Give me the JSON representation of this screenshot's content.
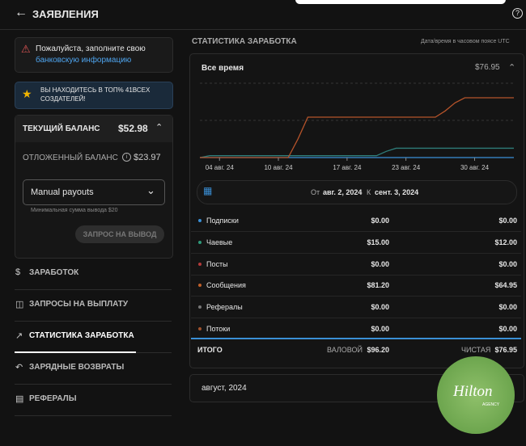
{
  "header": {
    "title": "ЗАЯВЛЕНИЯ"
  },
  "sidebar": {
    "alert": {
      "text": "Пожалуйста, заполните свою",
      "link": "банковскую информацию"
    },
    "rank": "ВЫ НАХОДИТЕСЬ В ТОП% 41ВСЕХ СОЗДАТЕЛЕЙ!",
    "balance": {
      "label": "ТЕКУЩИЙ БАЛАНС",
      "value": "$52.98"
    },
    "pending": {
      "label": "ОТЛОЖЕННЫЙ БАЛАНС",
      "value": "$23.97"
    },
    "payout_select": "Manual payouts",
    "min_note": "Минимальная сумма вывода $20",
    "button": "ЗАПРОС НА ВЫВОД",
    "nav": [
      "ЗАРАБОТОК",
      "ЗАПРОСЫ НА ВЫПЛАТУ",
      "СТАТИСТИКА ЗАРАБОТКА",
      "ЗАРЯДНЫЕ ВОЗВРАТЫ",
      "РЕФЕРАЛЫ"
    ]
  },
  "main": {
    "title": "СТАТИСТИКА ЗАРАБОТКА",
    "timezone": "Дата/время в часовом поясе UTC",
    "card_title": "Все время",
    "card_total": "$76.95",
    "range": {
      "from_label": "От",
      "from": "авг. 2, 2024",
      "to_label": "К",
      "to": "сент. 3, 2024"
    },
    "rows": [
      {
        "name": "Подписки",
        "gross": "$0.00",
        "net": "$0.00",
        "color": "#3a8fd6"
      },
      {
        "name": "Чаевые",
        "gross": "$15.00",
        "net": "$12.00",
        "color": "#2f9a7a"
      },
      {
        "name": "Посты",
        "gross": "$0.00",
        "net": "$0.00",
        "color": "#b33a3a"
      },
      {
        "name": "Сообщения",
        "gross": "$81.20",
        "net": "$64.95",
        "color": "#c0602a"
      },
      {
        "name": "Рефералы",
        "gross": "$0.00",
        "net": "$0.00",
        "color": "#777777"
      },
      {
        "name": "Потоки",
        "gross": "$0.00",
        "net": "$0.00",
        "color": "#a0522d"
      }
    ],
    "total": {
      "label": "ИТОГО",
      "gross_label": "ВАЛОВОЙ",
      "gross": "$96.20",
      "net_label": "ЧИСТАЯ",
      "net": "$76.95"
    },
    "month": "август, 2024"
  },
  "watermark": {
    "name": "Hilton",
    "sub": "AGENCY"
  },
  "chart_data": {
    "type": "line",
    "categories": [
      null,
      null,
      "04 авг. 24",
      null,
      null,
      null,
      null,
      null,
      "10 авг. 24",
      null,
      null,
      null,
      null,
      null,
      null,
      "17 авг. 24",
      null,
      null,
      null,
      null,
      null,
      "23 авг. 24",
      null,
      null,
      null,
      null,
      null,
      null,
      "30 авг. 24",
      null,
      null,
      null,
      null
    ],
    "ylim": [
      0,
      130
    ],
    "series": [
      {
        "color": "#3a8fd6",
        "values": [
          0,
          0,
          0,
          0,
          0,
          0,
          0,
          0,
          0,
          0,
          0,
          0,
          0,
          0,
          0,
          0,
          0,
          0,
          0,
          0,
          0,
          0,
          0,
          0,
          0,
          0,
          0,
          0,
          0,
          0,
          0,
          0,
          0
        ]
      },
      {
        "color": "#2f7d7a",
        "values": [
          0,
          3,
          3,
          3,
          3,
          3,
          3,
          3,
          3,
          3,
          3,
          3,
          3,
          3,
          3,
          3,
          3,
          3,
          3,
          10,
          15,
          15,
          15,
          15,
          15,
          15,
          15,
          15,
          15,
          15,
          15,
          15,
          15
        ]
      },
      {
        "color": "#b5532a",
        "values": [
          0,
          0,
          0,
          0,
          0,
          0,
          0,
          0,
          0,
          0,
          30,
          65,
          65,
          65,
          65,
          65,
          65,
          65,
          65,
          65,
          65,
          65,
          65,
          65,
          65,
          75,
          88,
          96.2,
          96.2,
          96.2,
          96.2,
          96.2,
          96.2
        ]
      }
    ]
  }
}
